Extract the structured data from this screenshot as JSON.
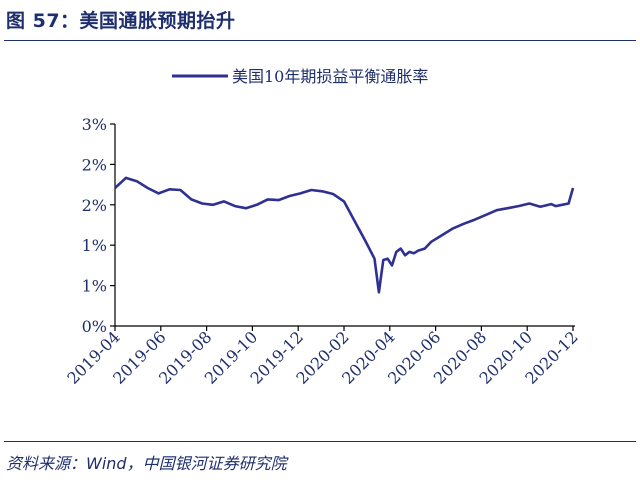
{
  "figure_title": "图 57：美国通胀预期抬升",
  "source": "资料来源：Wind，中国银河证券研究院",
  "colors": {
    "series": "#2e3192",
    "text": "#1f2f6e"
  },
  "chart_data": {
    "type": "line",
    "title": "",
    "xlabel": "",
    "ylabel": "",
    "legend": "top-center",
    "grid": false,
    "y_ticks": [
      "0%",
      "1%",
      "1%",
      "2%",
      "2%",
      "3%"
    ],
    "x_ticks": [
      "2019-04",
      "2019-06",
      "2019-08",
      "2019-10",
      "2019-12",
      "2020-02",
      "2020-04",
      "2020-06",
      "2020-08",
      "2020-10",
      "2020-12"
    ],
    "ylim": [
      0,
      3
    ],
    "xlim": [
      0,
      21
    ],
    "series": [
      {
        "name": "美国10年期损益平衡通胀率",
        "x": [
          0,
          0.5,
          1,
          1.5,
          2,
          2.5,
          3,
          3.5,
          4,
          4.5,
          5,
          5.5,
          6,
          6.5,
          7,
          7.5,
          8,
          8.5,
          9,
          9.5,
          10,
          10.5,
          11,
          11.5,
          11.9,
          12.1,
          12.3,
          12.5,
          12.7,
          12.9,
          13.1,
          13.3,
          13.5,
          13.7,
          13.9,
          14.2,
          14.5,
          15,
          15.5,
          16,
          16.5,
          17,
          17.5,
          18,
          18.5,
          19,
          19.5,
          20,
          20.2,
          20.5,
          20.8,
          21
        ],
        "values": [
          2.05,
          2.2,
          2.15,
          2.05,
          1.97,
          2.03,
          2.02,
          1.88,
          1.82,
          1.8,
          1.85,
          1.78,
          1.75,
          1.8,
          1.88,
          1.87,
          1.93,
          1.97,
          2.02,
          2.0,
          1.96,
          1.85,
          1.55,
          1.25,
          1.0,
          0.5,
          0.98,
          1.0,
          0.9,
          1.1,
          1.15,
          1.05,
          1.1,
          1.08,
          1.12,
          1.15,
          1.25,
          1.35,
          1.45,
          1.52,
          1.58,
          1.65,
          1.72,
          1.75,
          1.78,
          1.82,
          1.77,
          1.81,
          1.78,
          1.8,
          1.82,
          2.05
        ]
      }
    ]
  }
}
